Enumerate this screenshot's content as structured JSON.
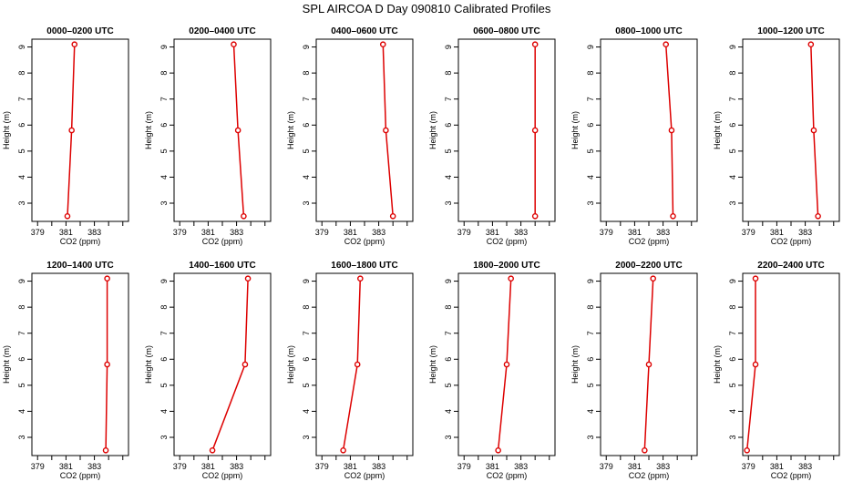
{
  "figure": {
    "title": "SPL AIRCOA D  Day 090810  Calibrated Profiles"
  },
  "colors": {
    "series": "#dd0000",
    "axis": "#000000",
    "background": "#ffffff"
  },
  "chart_data": [
    {
      "type": "line",
      "title": "0000–0200 UTC",
      "xlabel": "CO2 (ppm)",
      "ylabel": "Height (m)",
      "xlim": [
        378.6,
        385.4
      ],
      "ylim": [
        2.3,
        9.3
      ],
      "xticks": [
        379,
        380,
        381,
        382,
        383,
        384,
        385
      ],
      "xtick_labels": [
        "379",
        "",
        "381",
        "",
        "383",
        "",
        ""
      ],
      "yticks": [
        3,
        4,
        5,
        6,
        7,
        8,
        9
      ],
      "grid": false,
      "legend": "none",
      "series": [
        {
          "x": [
            381.1,
            381.4,
            381.6
          ],
          "y": [
            2.5,
            5.8,
            9.1
          ]
        }
      ]
    },
    {
      "type": "line",
      "title": "0200–0400 UTC",
      "xlabel": "CO2 (ppm)",
      "ylabel": "Height (m)",
      "xlim": [
        378.6,
        385.4
      ],
      "ylim": [
        2.3,
        9.3
      ],
      "xticks": [
        379,
        380,
        381,
        382,
        383,
        384,
        385
      ],
      "xtick_labels": [
        "379",
        "",
        "381",
        "",
        "383",
        "",
        ""
      ],
      "yticks": [
        3,
        4,
        5,
        6,
        7,
        8,
        9
      ],
      "grid": false,
      "legend": "none",
      "series": [
        {
          "x": [
            383.5,
            383.1,
            382.8
          ],
          "y": [
            2.5,
            5.8,
            9.1
          ]
        }
      ]
    },
    {
      "type": "line",
      "title": "0400–0600 UTC",
      "xlabel": "CO2 (ppm)",
      "ylabel": "Height (m)",
      "xlim": [
        378.6,
        385.4
      ],
      "ylim": [
        2.3,
        9.3
      ],
      "xticks": [
        379,
        380,
        381,
        382,
        383,
        384,
        385
      ],
      "xtick_labels": [
        "379",
        "",
        "381",
        "",
        "383",
        "",
        ""
      ],
      "yticks": [
        3,
        4,
        5,
        6,
        7,
        8,
        9
      ],
      "grid": false,
      "legend": "none",
      "series": [
        {
          "x": [
            384.0,
            383.5,
            383.3
          ],
          "y": [
            2.5,
            5.8,
            9.1
          ]
        }
      ]
    },
    {
      "type": "line",
      "title": "0600–0800 UTC",
      "xlabel": "CO2 (ppm)",
      "ylabel": "Height (m)",
      "xlim": [
        378.6,
        385.4
      ],
      "ylim": [
        2.3,
        9.3
      ],
      "xticks": [
        379,
        380,
        381,
        382,
        383,
        384,
        385
      ],
      "xtick_labels": [
        "379",
        "",
        "381",
        "",
        "383",
        "",
        ""
      ],
      "yticks": [
        3,
        4,
        5,
        6,
        7,
        8,
        9
      ],
      "grid": false,
      "legend": "none",
      "series": [
        {
          "x": [
            384.0,
            384.0,
            384.0
          ],
          "y": [
            2.5,
            5.8,
            9.1
          ]
        }
      ]
    },
    {
      "type": "line",
      "title": "0800–1000 UTC",
      "xlabel": "CO2 (ppm)",
      "ylabel": "Height (m)",
      "xlim": [
        378.6,
        385.4
      ],
      "ylim": [
        2.3,
        9.3
      ],
      "xticks": [
        379,
        380,
        381,
        382,
        383,
        384,
        385
      ],
      "xtick_labels": [
        "379",
        "",
        "381",
        "",
        "383",
        "",
        ""
      ],
      "yticks": [
        3,
        4,
        5,
        6,
        7,
        8,
        9
      ],
      "grid": false,
      "legend": "none",
      "series": [
        {
          "x": [
            383.7,
            383.6,
            383.2
          ],
          "y": [
            2.5,
            5.8,
            9.1
          ]
        }
      ]
    },
    {
      "type": "line",
      "title": "1000–1200 UTC",
      "xlabel": "CO2 (ppm)",
      "ylabel": "Height (m)",
      "xlim": [
        378.6,
        385.4
      ],
      "ylim": [
        2.3,
        9.3
      ],
      "xticks": [
        379,
        380,
        381,
        382,
        383,
        384,
        385
      ],
      "xtick_labels": [
        "379",
        "",
        "381",
        "",
        "383",
        "",
        ""
      ],
      "yticks": [
        3,
        4,
        5,
        6,
        7,
        8,
        9
      ],
      "grid": false,
      "legend": "none",
      "series": [
        {
          "x": [
            383.9,
            383.6,
            383.4
          ],
          "y": [
            2.5,
            5.8,
            9.1
          ]
        }
      ]
    },
    {
      "type": "line",
      "title": "1200–1400 UTC",
      "xlabel": "CO2 (ppm)",
      "ylabel": "Height (m)",
      "xlim": [
        378.6,
        385.4
      ],
      "ylim": [
        2.3,
        9.3
      ],
      "xticks": [
        379,
        380,
        381,
        382,
        383,
        384,
        385
      ],
      "xtick_labels": [
        "379",
        "",
        "381",
        "",
        "383",
        "",
        ""
      ],
      "yticks": [
        3,
        4,
        5,
        6,
        7,
        8,
        9
      ],
      "grid": false,
      "legend": "none",
      "series": [
        {
          "x": [
            383.8,
            383.9,
            383.9
          ],
          "y": [
            2.5,
            5.8,
            9.1
          ]
        }
      ]
    },
    {
      "type": "line",
      "title": "1400–1600 UTC",
      "xlabel": "CO2 (ppm)",
      "ylabel": "Height (m)",
      "xlim": [
        378.6,
        385.4
      ],
      "ylim": [
        2.3,
        9.3
      ],
      "xticks": [
        379,
        380,
        381,
        382,
        383,
        384,
        385
      ],
      "xtick_labels": [
        "379",
        "",
        "381",
        "",
        "383",
        "",
        ""
      ],
      "yticks": [
        3,
        4,
        5,
        6,
        7,
        8,
        9
      ],
      "grid": false,
      "legend": "none",
      "series": [
        {
          "x": [
            381.3,
            383.6,
            383.8
          ],
          "y": [
            2.5,
            5.8,
            9.1
          ]
        }
      ]
    },
    {
      "type": "line",
      "title": "1600–1800 UTC",
      "xlabel": "CO2 (ppm)",
      "ylabel": "Height (m)",
      "xlim": [
        378.6,
        385.4
      ],
      "ylim": [
        2.3,
        9.3
      ],
      "xticks": [
        379,
        380,
        381,
        382,
        383,
        384,
        385
      ],
      "xtick_labels": [
        "379",
        "",
        "381",
        "",
        "383",
        "",
        ""
      ],
      "yticks": [
        3,
        4,
        5,
        6,
        7,
        8,
        9
      ],
      "grid": false,
      "legend": "none",
      "series": [
        {
          "x": [
            380.5,
            381.5,
            381.7
          ],
          "y": [
            2.5,
            5.8,
            9.1
          ]
        }
      ]
    },
    {
      "type": "line",
      "title": "1800–2000 UTC",
      "xlabel": "CO2 (ppm)",
      "ylabel": "Height (m)",
      "xlim": [
        378.6,
        385.4
      ],
      "ylim": [
        2.3,
        9.3
      ],
      "xticks": [
        379,
        380,
        381,
        382,
        383,
        384,
        385
      ],
      "xtick_labels": [
        "379",
        "",
        "381",
        "",
        "383",
        "",
        ""
      ],
      "yticks": [
        3,
        4,
        5,
        6,
        7,
        8,
        9
      ],
      "grid": false,
      "legend": "none",
      "series": [
        {
          "x": [
            381.4,
            382.0,
            382.3
          ],
          "y": [
            2.5,
            5.8,
            9.1
          ]
        }
      ]
    },
    {
      "type": "line",
      "title": "2000–2200 UTC",
      "xlabel": "CO2 (ppm)",
      "ylabel": "Height (m)",
      "xlim": [
        378.6,
        385.4
      ],
      "ylim": [
        2.3,
        9.3
      ],
      "xticks": [
        379,
        380,
        381,
        382,
        383,
        384,
        385
      ],
      "xtick_labels": [
        "379",
        "",
        "381",
        "",
        "383",
        "",
        ""
      ],
      "yticks": [
        3,
        4,
        5,
        6,
        7,
        8,
        9
      ],
      "grid": false,
      "legend": "none",
      "series": [
        {
          "x": [
            381.7,
            382.0,
            382.3
          ],
          "y": [
            2.5,
            5.8,
            9.1
          ]
        }
      ]
    },
    {
      "type": "line",
      "title": "2200–2400 UTC",
      "xlabel": "CO2 (ppm)",
      "ylabel": "Height (m)",
      "xlim": [
        378.6,
        385.4
      ],
      "ylim": [
        2.3,
        9.3
      ],
      "xticks": [
        379,
        380,
        381,
        382,
        383,
        384,
        385
      ],
      "xtick_labels": [
        "379",
        "",
        "381",
        "",
        "383",
        "",
        ""
      ],
      "yticks": [
        3,
        4,
        5,
        6,
        7,
        8,
        9
      ],
      "grid": false,
      "legend": "none",
      "series": [
        {
          "x": [
            378.9,
            379.5,
            379.5
          ],
          "y": [
            2.5,
            5.8,
            9.1
          ]
        }
      ]
    }
  ]
}
